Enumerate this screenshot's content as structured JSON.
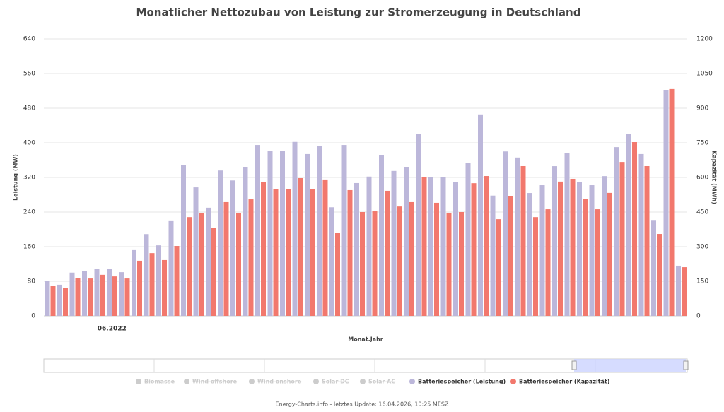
{
  "chart_data": {
    "type": "bar",
    "title": "Monatlicher Nettozubau von Leistung zur Stromerzeugung in Deutschland",
    "x_label": "Monat.Jahr",
    "y_label": "Leistung (MW)",
    "y2_label": "Kapazität (MWh)",
    "footer": "Energy-Charts.info - letztes Update: 16.04.2026, 10:25 MESZ",
    "hidden_legend": [
      "Biomasse",
      "Wind offshore",
      "Wind onshore",
      "Solar DC",
      "Solar AC"
    ],
    "categories": [
      null,
      null,
      null,
      null,
      null,
      "06.2022",
      null,
      null,
      null,
      null,
      null,
      null,
      null,
      null,
      null,
      null,
      null,
      null,
      null,
      null,
      null,
      null,
      null,
      null,
      null,
      null,
      null,
      null,
      null,
      null,
      null,
      null,
      null,
      null,
      null,
      null,
      null,
      null,
      null,
      null,
      null,
      null,
      null,
      null,
      null,
      null,
      null,
      null,
      null,
      null,
      null,
      null
    ],
    "series": [
      {
        "name": "Batteriespeicher (Leistung)",
        "color": "#bcb7da",
        "values": [
          80,
          72,
          100,
          104,
          108,
          108,
          101,
          152,
          189,
          163,
          219,
          348,
          297,
          250,
          336,
          313,
          344,
          395,
          382,
          382,
          402,
          374,
          393,
          251,
          395,
          307,
          322,
          371,
          335,
          344,
          420,
          320,
          320,
          310,
          353,
          464,
          278,
          380,
          366,
          284,
          302,
          346,
          377,
          310,
          302,
          323,
          390,
          421,
          374,
          220,
          521,
          116
        ]
      },
      {
        "name": "Batteriespeicher (Kapazität)",
        "color": "#f2786d",
        "axis": "y2",
        "values": [
          129,
          122,
          165,
          162,
          178,
          171,
          162,
          239,
          272,
          242,
          303,
          428,
          447,
          380,
          493,
          444,
          505,
          579,
          548,
          551,
          597,
          548,
          588,
          361,
          545,
          450,
          453,
          542,
          474,
          493,
          600,
          490,
          447,
          450,
          575,
          606,
          419,
          520,
          649,
          428,
          462,
          582,
          594,
          508,
          462,
          533,
          667,
          753,
          649,
          355,
          983,
          211
        ]
      }
    ],
    "ylim": [
      0,
      640
    ],
    "yticks": [
      0,
      80,
      160,
      240,
      320,
      400,
      480,
      560,
      640
    ],
    "y2lim": [
      0,
      1200
    ],
    "y2ticks": [
      0,
      150,
      300,
      450,
      600,
      750,
      900,
      1050,
      1200
    ],
    "grid": true
  }
}
